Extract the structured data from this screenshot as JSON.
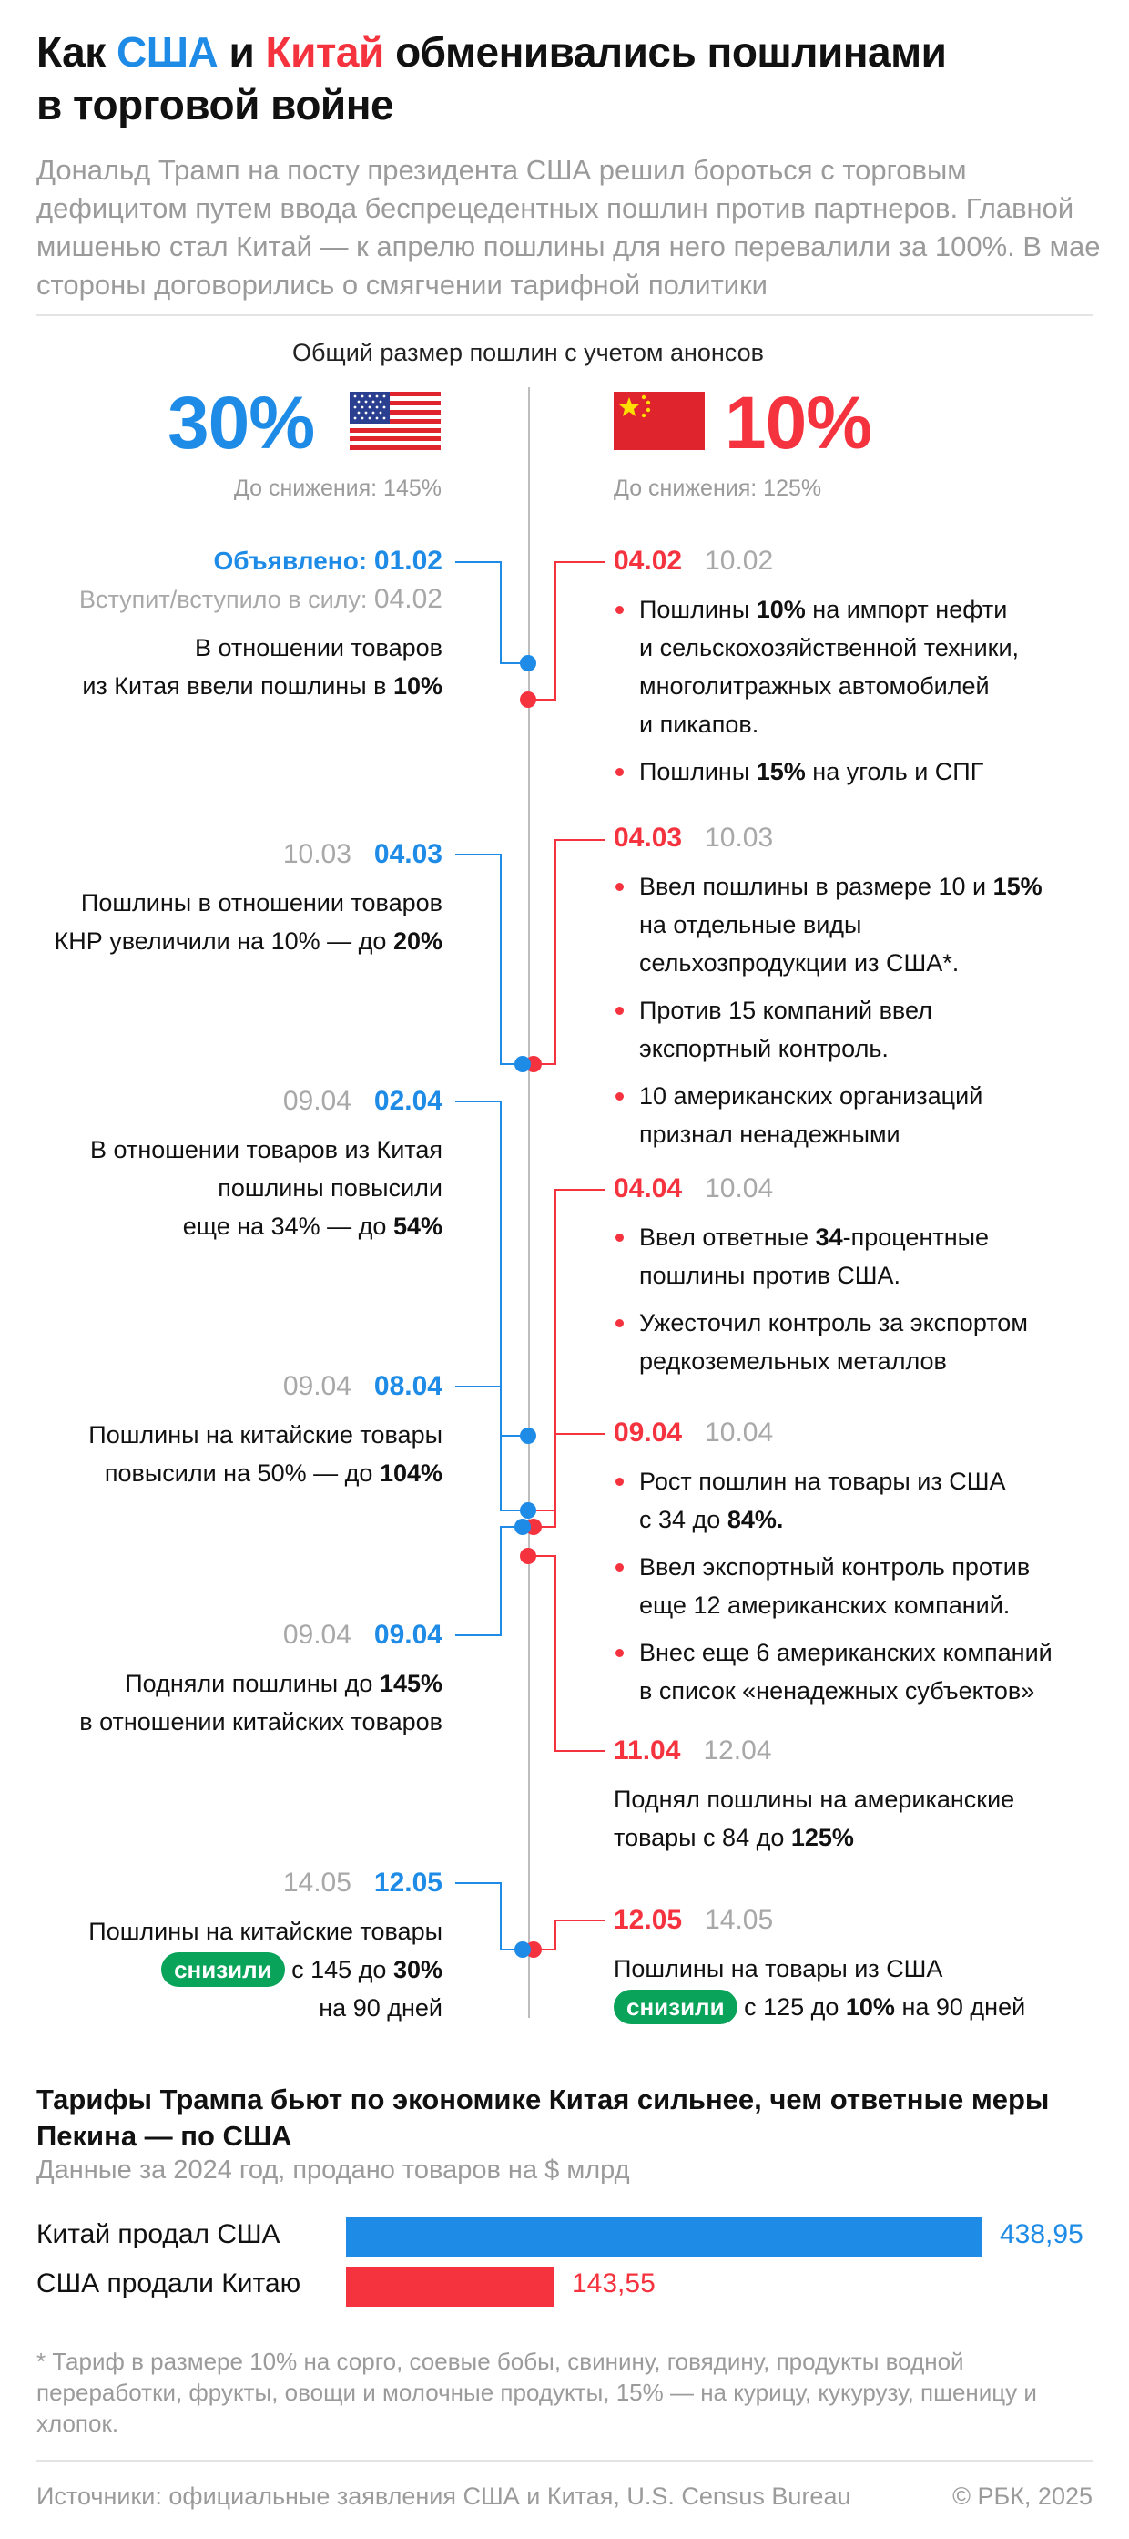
{
  "header": {
    "title_a": "Как ",
    "title_us": "США",
    "title_b": " и ",
    "title_cn": "Китай",
    "title_c": " обменивались пошлинами",
    "title_d": "в торговой войне",
    "intro": "Дональд Трамп на посту президента США решил бороться с торговым дефицитом путем ввода беспрецедентных пошлин против партнеров. Главной мишенью стал Китай — к апрелю пошлины для него перевалили за 100%. В мае стороны договорились о смягчении тарифной политики"
  },
  "summary": {
    "heading": "Общий размер пошлин с учетом анонсов",
    "us_pct": "30%",
    "us_before": "До снижения: 145%",
    "cn_pct": "10%",
    "cn_before": "До снижения: 125%"
  },
  "legend": {
    "announced_label": "Объявлено: ",
    "announced_date": "01.02",
    "effective_label": "Вступит/вступило в силу: ",
    "effective_date": "04.02"
  },
  "us_events": [
    {
      "announced": "01.02",
      "effective": "04.02",
      "l1": "В отношении товаров",
      "l2a": "из Китая ввели пошлины в ",
      "l2b": "10%"
    },
    {
      "effective": "10.03",
      "announced": "04.03",
      "l1": "Пошлины в отношении товаров",
      "l2a": "КНР увеличили на 10% — до ",
      "l2b": "20%"
    },
    {
      "effective": "09.04",
      "announced": "02.04",
      "l1": "В отношении товаров из Китая",
      "l2": "пошлины повысили",
      "l3a": "еще на 34% — до ",
      "l3b": "54%"
    },
    {
      "effective": "09.04",
      "announced": "08.04",
      "l1": "Пошлины на китайские товары",
      "l2a": "повысили на 50% — до ",
      "l2b": "104%"
    },
    {
      "effective": "09.04",
      "announced": "09.04",
      "l1a": "Подняли пошлины до ",
      "l1b": "145%",
      "l2": "в отношении китайских товаров"
    },
    {
      "effective": "14.05",
      "announced": "12.05",
      "l1": "Пошлины на китайские товары",
      "pill": "снизили",
      "l2a": " с 145 до ",
      "l2b": "30%",
      "l3": "на 90 дней"
    }
  ],
  "cn_events": [
    {
      "announced": "04.02",
      "effective": "10.02",
      "b1a": "Пошлины ",
      "b1b": "10%",
      "b1c": " на импорт нефти",
      "b1d": "и сельскохозяйственной техники,",
      "b1e": "многолитражных автомобилей",
      "b1f": "и пикапов.",
      "b2a": "Пошлины ",
      "b2b": "15%",
      "b2c": " на уголь и СПГ"
    },
    {
      "announced": "04.03",
      "effective": "10.03",
      "b1a": "Ввел пошлины в размере 10 и ",
      "b1b": "15%",
      "b1c": "на отдельные виды",
      "b1d": "сельхозпродукции из США*.",
      "b2a": "Против 15 компаний ввел",
      "b2b": "экспортный контроль.",
      "b3a": "10 американских организаций",
      "b3b": "признал ненадежными"
    },
    {
      "announced": "04.04",
      "effective": "10.04",
      "b1a": "Ввел ответные ",
      "b1b": "34",
      "b1c": "-процентные",
      "b1d": "пошлины против США.",
      "b2a": "Ужесточил контроль за экспортом",
      "b2b": "редкоземельных металлов"
    },
    {
      "announced": "09.04",
      "effective": "10.04",
      "b1a": "Рост пошлин на товары из США",
      "b1b": "с 34 до ",
      "b1c": "84%.",
      "b2a": "Ввел экспортный контроль против",
      "b2b": "еще 12 американских компаний.",
      "b3a": "Внес еще 6 американских компаний",
      "b3b": "в список «ненадежных субъектов»"
    },
    {
      "announced": "11.04",
      "effective": "12.04",
      "l1": "Поднял пошлины на американские",
      "l2a": "товары с 84 до ",
      "l2b": "125%"
    },
    {
      "announced": "12.05",
      "effective": "14.05",
      "l1": "Пошлины на товары из США",
      "pill": "снизили",
      "l2a": " с 125 до ",
      "l2b": "10%",
      "l2c": " на 90 дней"
    }
  ],
  "trade": {
    "title_l1": "Тарифы Трампа бьют по экономике Китая сильнее, чем ответные меры",
    "title_l2": "Пекина — по США",
    "subtitle": "Данные за 2024 год, продано товаров на $ млрд",
    "rows": [
      {
        "label": "Китай продал США",
        "value": 438.95,
        "value_text": "438,95",
        "color": "#1e8be6"
      },
      {
        "label": "США продали Китаю",
        "value": 143.55,
        "value_text": "143,55",
        "color": "#f5333f"
      }
    ]
  },
  "footnote": "* Тариф в размере 10% на сорго, соевые бобы, свинину, говядину, продукты водной переработки, фрукты, овощи и молочные продукты, 15% — на курицу, кукурузу, пшеницу и хлопок.",
  "sources": "Источники: официальные заявления США и Китая, U.S. Census Bureau",
  "copyright": "© РБК, 2025",
  "colors": {
    "us": "#1e8be6",
    "cn": "#f5333f",
    "pill": "#0aa35a",
    "axis": "#bdbdbd"
  }
}
